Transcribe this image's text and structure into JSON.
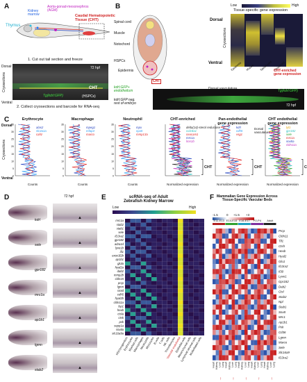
{
  "panels": {
    "A": {
      "letter": "A",
      "labels": {
        "thymus": "Thymus",
        "kidney_marrow": "Kidney\nmarrow",
        "agm": "Aorta-gonad-mesonephros\n(AGM)",
        "cht_title": "Caudal Hematopoietic\nTissue (CHT)",
        "step1": "1. Cut out tail section and freeze",
        "step2": "2. Collect cryosections and barcode for RNA-seq",
        "hpf": "72 hpf",
        "cht": "CHT",
        "dorsal": "Dorsal",
        "ventral": "Ventral",
        "cryosections": "Cryosections",
        "transgene": "Tg(kdrl:GFP)",
        "hspcs": "(HSPCs)"
      }
    },
    "B": {
      "letter": "B",
      "labels": {
        "spinal_cord": "Spinal cord",
        "muscle": "Muscle",
        "notochord": "Notochord",
        "hspcs": "HSPCs",
        "epidermis": "Epidermis",
        "cht": "CHT",
        "legend_low": "Low",
        "legend_high": "High",
        "legend_title": "Tissue-specific gene expression",
        "dorsal": "Dorsal",
        "ventral": "Ventral",
        "cryosections": "Cryosections",
        "cols": [
          "Epidermis",
          "Muscle",
          "Spinal cord",
          "Notochord"
        ],
        "cht_enriched": "CHT-enriched\ngene expression",
        "kdrl_gfp_pos": "kdrl:GFP+\nendothelium",
        "kdrl_gfp_neg": "kdrl:GFP neg.\nrest of embryo",
        "dorsal_vasc": "Dorsal vasculature",
        "transgene": "Tg(kdrl:GFP)",
        "hpf": "72 hpf"
      }
    },
    "C": {
      "letter": "C",
      "dorsal": "Dorsal",
      "ventral": "Ventral",
      "cryosections": "Cryosections",
      "cht": "CHT",
      "dorsal_vasc": "Dorsal\nvasculature",
      "subplots": [
        {
          "title": "Erythrocyte",
          "xlabel": "Counts",
          "legend": [
            "alas2",
            "slc4a1a",
            "cahz"
          ],
          "colors": [
            "#1f3fbf",
            "#2a9df4",
            "#e02020"
          ]
        },
        {
          "title": "Macrophage",
          "xlabel": "Counts",
          "legend": [
            "mpeg1",
            "mfap4",
            "marco"
          ],
          "colors": [
            "#1f3fbf",
            "#2a9df4",
            "#e02020"
          ]
        },
        {
          "title": "Neutrophil",
          "xlabel": "Counts",
          "legend": [
            "mpx",
            "cpa5",
            "mmp13a"
          ],
          "colors": [
            "#1f3fbf",
            "#2a9df4",
            "#e02020"
          ]
        },
        {
          "title": "CHT-enriched",
          "xlabel": "Normalized expression",
          "legend": [
            "delta(14)-sterol reductase",
            "col18a1",
            "ceacam1",
            "mrc1a",
            "lmn1b"
          ],
          "colors": [
            "#222222",
            "#2bbfbf",
            "#e02020",
            "#1f3fbf",
            "#c030c0"
          ]
        },
        {
          "title": "Pan-endothelial\ngene expression",
          "xlabel": "Normalized expression",
          "legend": [
            "kdrl",
            "cdh5",
            "vsg1"
          ],
          "colors": [
            "#1f3fbf",
            "#2a9df4",
            "#e02020"
          ]
        },
        {
          "title": "CHT endothelial\ngene expression",
          "xlabel": "Normalized expression",
          "legend": [
            "lyl1",
            "gpr182",
            "sele",
            "mrc1a",
            "snx8a",
            "cldn11a"
          ],
          "colors": [
            "#e0a000",
            "#2bbfbf",
            "#30a030",
            "#e02020",
            "#1f3fbf",
            "#c030c0"
          ]
        }
      ],
      "yticks": [
        "0",
        "5",
        "10",
        "15",
        "20",
        "25",
        "30",
        "35"
      ],
      "xticks_counts": [
        "0",
        "100",
        "200",
        "300",
        "400"
      ]
    },
    "D": {
      "letter": "D",
      "hpf": "72 hpf",
      "genes": [
        "kdrl",
        "sele",
        "gpr182",
        "mrc1a",
        "ap1b1",
        "lgmn",
        "stab2"
      ]
    },
    "E": {
      "letter": "E",
      "title": "scRNA-seq of Adult\nZebrafish Kidney Marrow",
      "legend_low": "Low",
      "legend_high": "High",
      "genes": [
        "mrc1a",
        "stab2",
        "stab1",
        "sele",
        "il13ra2",
        "gpr182",
        "adra1d",
        "lyve1b",
        "ifi1",
        "exoc3l2b",
        "ap1b1",
        "glula",
        "hyal2a",
        "dab2",
        "mmp2b",
        "cldn15",
        "prcp",
        "lgmn",
        "smtd",
        "cdh5",
        "hyal2b",
        "cldn11a",
        "lsp1",
        "hexb",
        "ctsla",
        "ctsk",
        "pxk",
        "sepp1a",
        "snx8a",
        "slc16a9a"
      ],
      "cell_types": [
        "HSC/progenitors",
        "Erythrocytes",
        "Myeloid cells",
        "Macrophages",
        "Neutrophils",
        "Monocytes",
        "B cells",
        "T cells",
        "NK cells",
        "Thrombocytes",
        "Vascular endothelial",
        "Epithelial cells",
        "Mesenchymal cells",
        "Lymphoid stromal cells",
        "Multiciliated cells"
      ]
    },
    "F": {
      "letter": "F",
      "title": "Mammalian Gene Expression Across\nTissue-Specific Vascular Beds",
      "scale": [
        "-1.5",
        "0",
        "+1.5",
        "+3"
      ],
      "stages": [
        "E11-E13",
        "E14-E15",
        "E16-E17",
        "P2-P4",
        "Adult"
      ],
      "genes": [
        "Prcp",
        "Cldn11",
        "Tll1",
        "Ctsh",
        "Hexb",
        "Hyal2",
        "Glu1",
        "Il13ra2",
        "Il30",
        "Lyve1",
        "Gpr182",
        "Dab2",
        "Ctsl",
        "Stab2",
        "Npl",
        "Stab1",
        "Snx8",
        "Mrc1",
        "Ap1b1",
        "Pxk",
        "Cd36",
        "Lgmn",
        "Marco",
        "Sele",
        "Slc16a9",
        "Il13ra2"
      ],
      "tissues": [
        "Heart",
        "Kidney",
        "Liver",
        "Lung"
      ]
    }
  }
}
